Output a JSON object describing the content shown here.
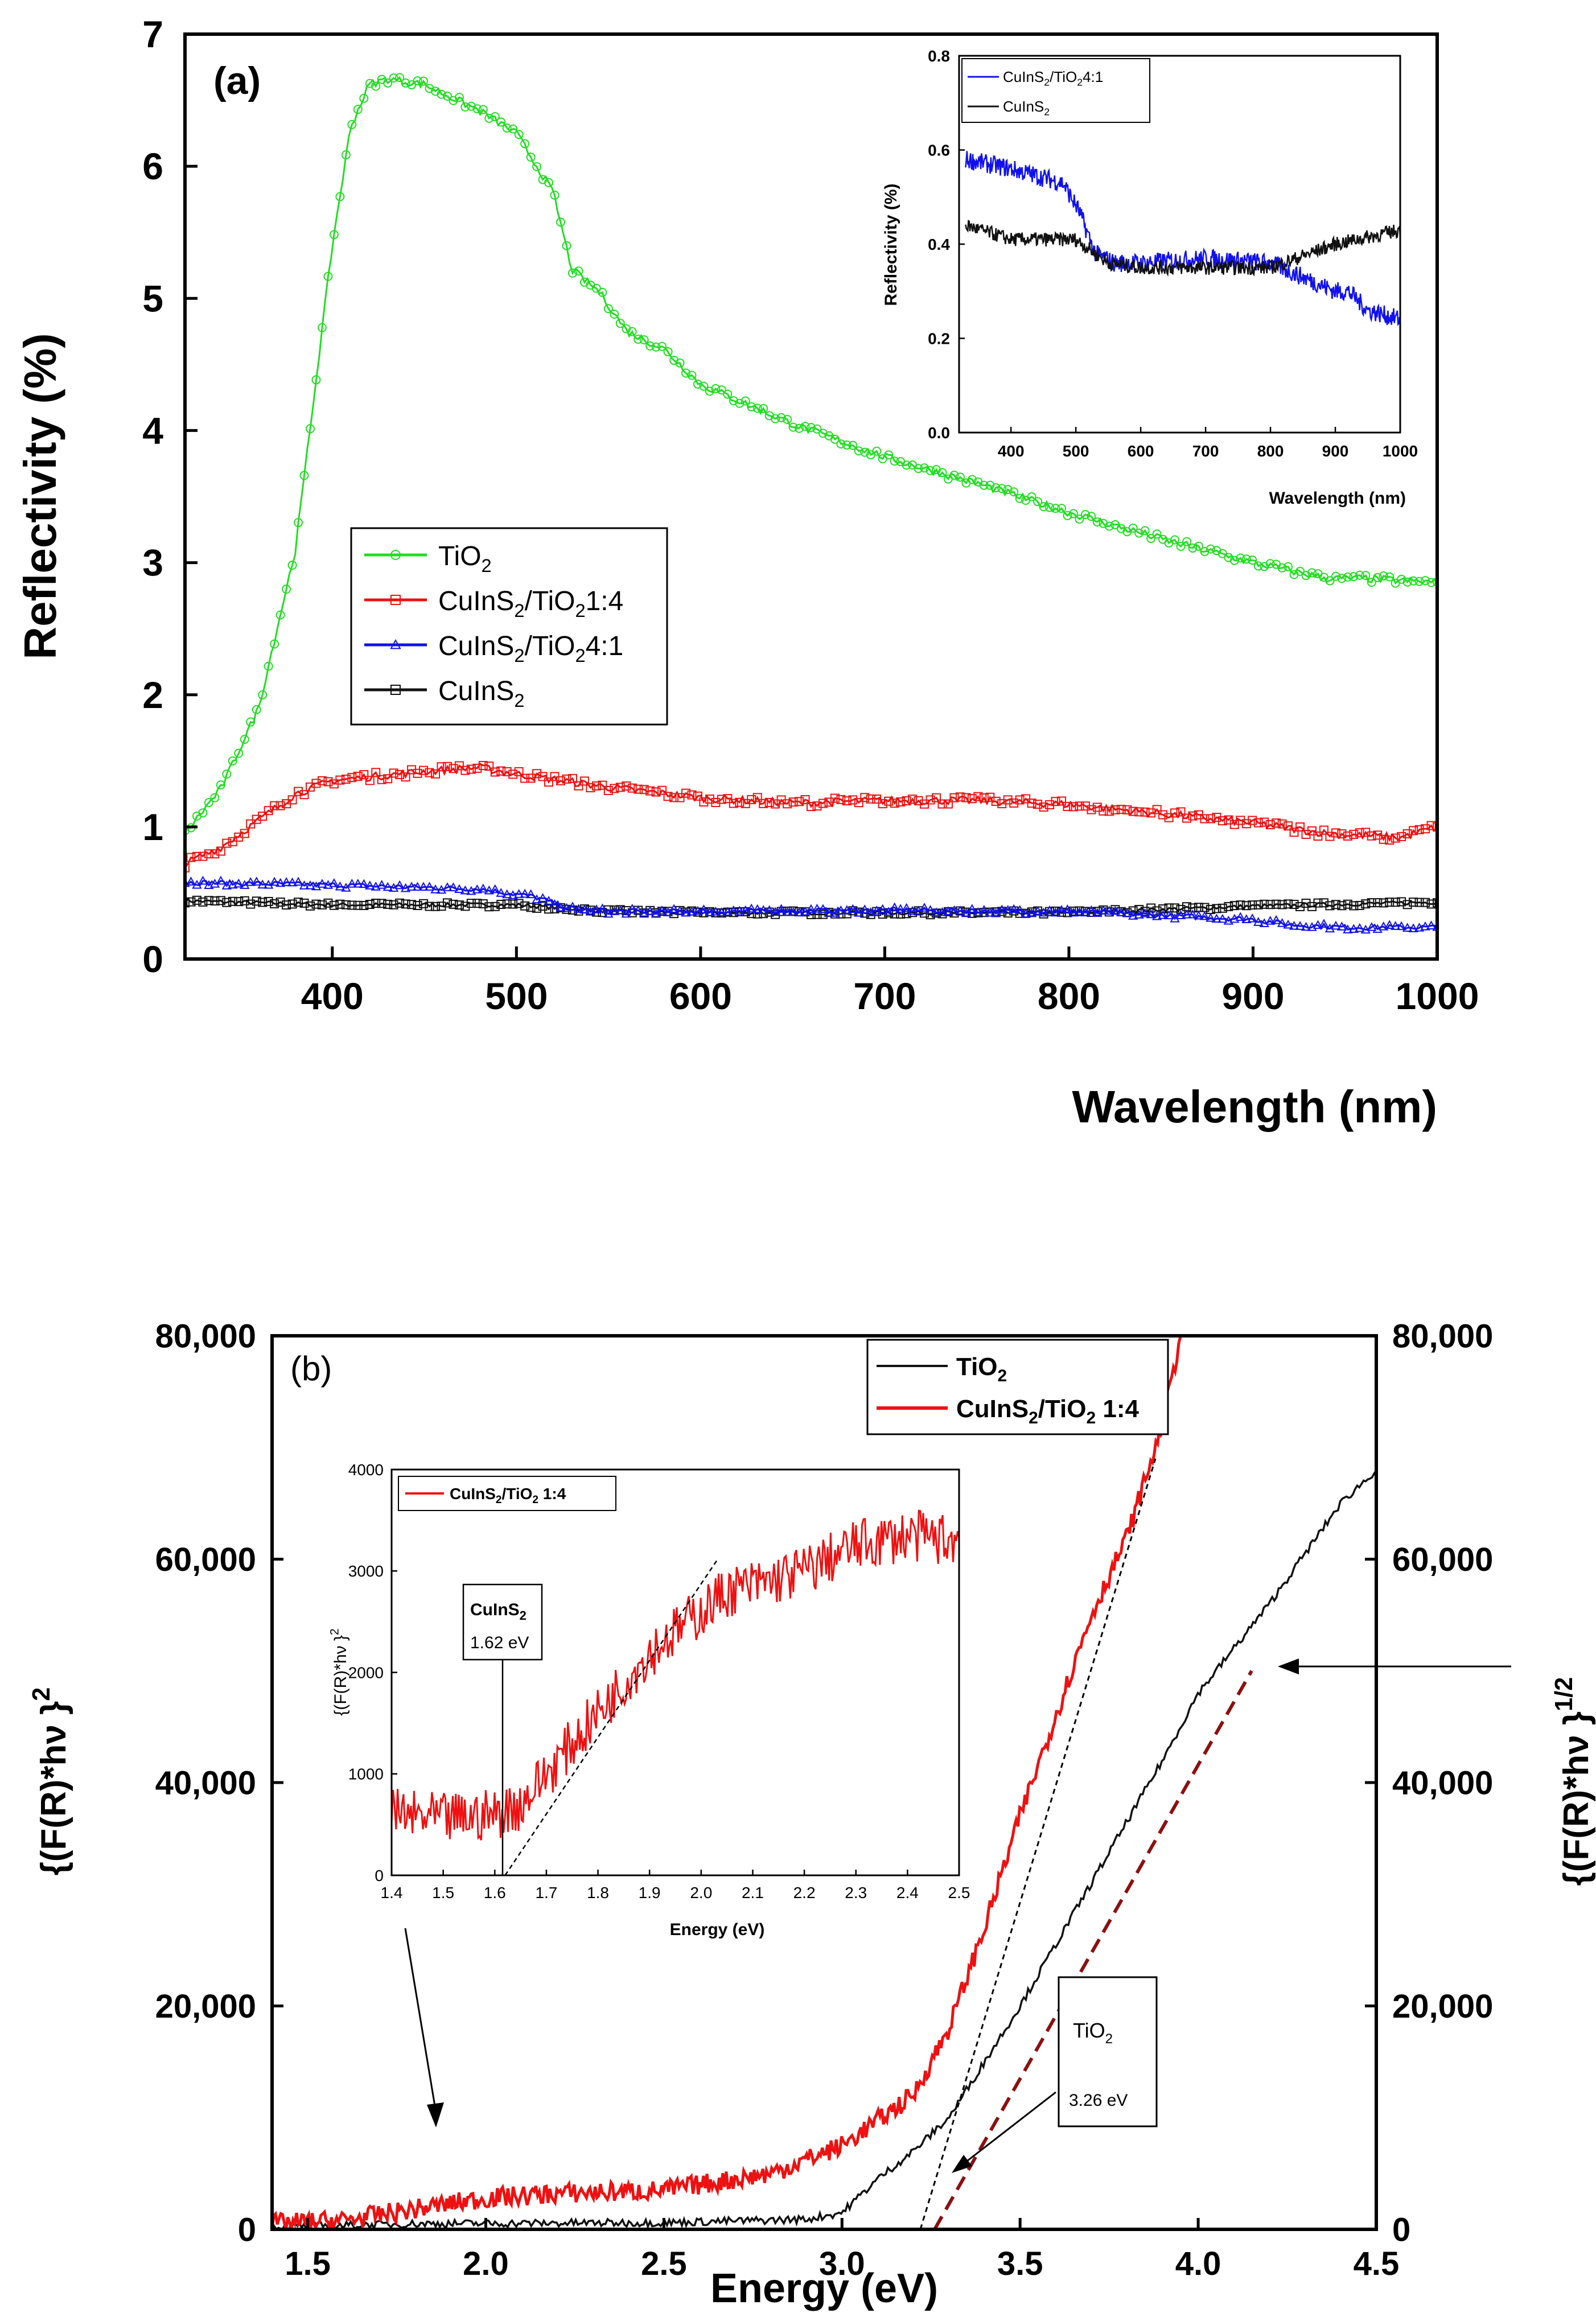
{
  "colors": {
    "tio2_green": "#22dd22",
    "red": "#ee1111",
    "blue": "#1111ee",
    "black": "#111111",
    "darkred_fit": "#8b1010"
  },
  "chart_data": [
    {
      "id": "a",
      "type": "line",
      "panel_label": "(a)",
      "xlabel": "Wavelength (nm)",
      "ylabel": "Reflectivity (%)",
      "xlim": [
        320,
        1000
      ],
      "ylim": [
        0,
        7
      ],
      "xticks": [
        "400",
        "500",
        "600",
        "700",
        "800",
        "900",
        "1000"
      ],
      "yticks": [
        "0",
        "1",
        "2",
        "3",
        "4",
        "5",
        "6",
        "7"
      ],
      "legend": [
        {
          "parts": [
            [
              "TiO",
              ""
            ],
            [
              "2",
              "sub"
            ]
          ],
          "color": "#22dd22",
          "marker": "circle"
        },
        {
          "parts": [
            [
              "CuInS",
              ""
            ],
            [
              "2",
              "sub"
            ],
            [
              "/TiO",
              ""
            ],
            [
              "2",
              "sub"
            ],
            [
              "1:4",
              ""
            ]
          ],
          "color": "#ee1111",
          "marker": "square"
        },
        {
          "parts": [
            [
              "CuInS",
              ""
            ],
            [
              "2",
              "sub"
            ],
            [
              "/TiO",
              ""
            ],
            [
              "2",
              "sub"
            ],
            [
              "4:1",
              ""
            ]
          ],
          "color": "#1111ee",
          "marker": "triangle"
        },
        {
          "parts": [
            [
              "CuInS",
              ""
            ],
            [
              "2",
              "sub"
            ]
          ],
          "color": "#111111",
          "marker": "square"
        }
      ],
      "series": [
        {
          "name": "TiO2",
          "color": "#22dd22",
          "marker": "circle",
          "noise": 0.03,
          "x": [
            320,
            340,
            360,
            380,
            400,
            410,
            420,
            430,
            450,
            480,
            500,
            520,
            530,
            545,
            560,
            580,
            600,
            650,
            700,
            750,
            800,
            850,
            900,
            940,
            960,
            1000
          ],
          "y": [
            0.95,
            1.3,
            1.9,
            3.1,
            5.4,
            6.3,
            6.62,
            6.66,
            6.62,
            6.42,
            6.25,
            5.8,
            5.22,
            5.05,
            4.75,
            4.62,
            4.35,
            4.05,
            3.8,
            3.6,
            3.38,
            3.18,
            3.0,
            2.88,
            2.88,
            2.85
          ]
        },
        {
          "name": "CuInS2/TiO2 1:4",
          "color": "#ee1111",
          "marker": "square",
          "noise": 0.03,
          "x": [
            320,
            340,
            360,
            380,
            400,
            450,
            480,
            500,
            550,
            600,
            650,
            700,
            750,
            800,
            850,
            900,
            940,
            980,
            1000
          ],
          "y": [
            0.72,
            0.85,
            1.05,
            1.25,
            1.35,
            1.42,
            1.45,
            1.4,
            1.3,
            1.22,
            1.18,
            1.2,
            1.2,
            1.17,
            1.1,
            1.03,
            0.95,
            0.92,
            1.0
          ]
        },
        {
          "name": "CuInS2/TiO2 4:1",
          "color": "#1111ee",
          "marker": "triangle",
          "noise": 0.02,
          "x": [
            320,
            400,
            480,
            510,
            530,
            550,
            600,
            700,
            800,
            850,
            900,
            920,
            950,
            1000
          ],
          "y": [
            0.58,
            0.56,
            0.53,
            0.47,
            0.38,
            0.36,
            0.36,
            0.37,
            0.36,
            0.33,
            0.3,
            0.26,
            0.24,
            0.24
          ]
        },
        {
          "name": "CuInS2",
          "color": "#111111",
          "marker": "square",
          "noise": 0.015,
          "x": [
            320,
            400,
            500,
            550,
            600,
            700,
            800,
            900,
            1000
          ],
          "y": [
            0.44,
            0.41,
            0.41,
            0.36,
            0.35,
            0.35,
            0.35,
            0.4,
            0.43
          ]
        }
      ],
      "inset": {
        "xlabel": "Wavelength (nm)",
        "ylabel": "Reflectivity (%)",
        "xlim": [
          320,
          1000
        ],
        "ylim": [
          0,
          0.8
        ],
        "xticks": [
          "400",
          "500",
          "600",
          "700",
          "800",
          "900",
          "1000"
        ],
        "yticks": [
          "0.0",
          "0.2",
          "0.4",
          "0.6",
          "0.8"
        ],
        "legend": [
          {
            "parts": [
              [
                "CuInS",
                ""
              ],
              [
                "2",
                "sub"
              ],
              [
                "/TiO",
                ""
              ],
              [
                "2",
                "sub"
              ],
              [
                "4:1",
                ""
              ]
            ],
            "color": "#1111ee"
          },
          {
            "parts": [
              [
                "CuInS",
                ""
              ],
              [
                "2",
                "sub"
              ]
            ],
            "color": "#111111"
          }
        ],
        "series": [
          {
            "name": "CuInS2/TiO2 4:1",
            "color": "#1111ee",
            "noise": 0.02,
            "x": [
              330,
              400,
              480,
              505,
              530,
              560,
              600,
              700,
              800,
              850,
              900,
              920,
              950,
              1000
            ],
            "y": [
              0.58,
              0.56,
              0.53,
              0.47,
              0.38,
              0.36,
              0.36,
              0.37,
              0.36,
              0.33,
              0.3,
              0.3,
              0.26,
              0.24
            ]
          },
          {
            "name": "CuInS2",
            "color": "#111111",
            "noise": 0.015,
            "x": [
              330,
              400,
              500,
              550,
              600,
              700,
              800,
              900,
              1000
            ],
            "y": [
              0.44,
              0.41,
              0.41,
              0.36,
              0.35,
              0.35,
              0.35,
              0.4,
              0.43
            ]
          }
        ]
      }
    },
    {
      "id": "b",
      "type": "line",
      "panel_label": "(b)",
      "xlabel": "Energy (eV)",
      "ylabel_left": "{(F(R)*hν }^2",
      "ylabel_right": "{(F(R)*hν }^1/2",
      "xlim": [
        1.4,
        4.5
      ],
      "ylim": [
        0,
        80000
      ],
      "xticks": [
        "1.5",
        "2.0",
        "2.5",
        "3.0",
        "3.5",
        "4.0",
        "4.5"
      ],
      "yticks": [
        "0",
        "20,000",
        "40,000",
        "60,000",
        "80,000"
      ],
      "legend": [
        {
          "parts": [
            [
              "TiO",
              ""
            ],
            [
              "2",
              "sub"
            ]
          ],
          "color": "#111111"
        },
        {
          "parts": [
            [
              "CuInS",
              ""
            ],
            [
              "2",
              "sub"
            ],
            [
              "/TiO",
              ""
            ],
            [
              "2",
              "sub"
            ],
            [
              " 1:4",
              ""
            ]
          ],
          "color": "#ee1111"
        }
      ],
      "series": [
        {
          "name": "TiO2",
          "color": "#111111",
          "noise": 350,
          "x": [
            1.4,
            1.8,
            2.5,
            2.9,
            3.0,
            3.05,
            3.1,
            3.2,
            3.3,
            3.5,
            3.7,
            3.9,
            4.0,
            4.2,
            4.4,
            4.5
          ],
          "y": [
            200,
            500,
            600,
            900,
            1500,
            3000,
            4500,
            7000,
            10000,
            20000,
            31000,
            42000,
            48000,
            56000,
            65000,
            68000
          ]
        },
        {
          "name": "CuInS2/TiO2 1:4",
          "color": "#ee1111",
          "noise": 900,
          "x": [
            1.4,
            1.6,
            1.8,
            2.0,
            2.2,
            2.5,
            2.8,
            3.0,
            3.2,
            3.3,
            3.4,
            3.5,
            3.6,
            3.7,
            3.8,
            3.9,
            3.95
          ],
          "y": [
            500,
            800,
            1800,
            2800,
            3200,
            3500,
            5000,
            7500,
            12000,
            18000,
            27000,
            37000,
            46000,
            55000,
            62000,
            72000,
            80000
          ]
        }
      ],
      "fits": [
        {
          "name": "CuInS2/TiO2 1:4 fit",
          "x": [
            3.22,
            3.88
          ],
          "y": [
            0,
            69000
          ],
          "style": "dotted"
        },
        {
          "name": "TiO2 fit",
          "x": [
            3.26,
            4.15
          ],
          "y": [
            0,
            50000
          ],
          "style": "dashed"
        }
      ],
      "annotations": {
        "tio2_box_title": "TiO2",
        "tio2_box_value": "3.26 eV",
        "cuins2_box_title": "CuInS2",
        "cuins2_box_value": "1.62 eV"
      },
      "inset": {
        "xlabel": "Energy (eV)",
        "ylabel": "{(F(R)*hν }^2",
        "xlim": [
          1.4,
          2.5
        ],
        "ylim": [
          0,
          4000
        ],
        "xticks": [
          "1.4",
          "1.5",
          "1.6",
          "1.7",
          "1.8",
          "1.9",
          "2.0",
          "2.1",
          "2.2",
          "2.3",
          "2.4",
          "2.5"
        ],
        "yticks": [
          "0",
          "1000",
          "2000",
          "3000",
          "4000"
        ],
        "legend": [
          {
            "parts": [
              [
                "CuInS",
                ""
              ],
              [
                "2",
                "sub"
              ],
              [
                "/TiO",
                ""
              ],
              [
                "2",
                "sub"
              ],
              [
                " 1:4",
                ""
              ]
            ],
            "color": "#ee1111"
          }
        ],
        "series": [
          {
            "name": "CuInS2/TiO2 1:4",
            "color": "#ee1111",
            "noise": 260,
            "x": [
              1.4,
              1.5,
              1.6,
              1.65,
              1.7,
              1.8,
              1.9,
              2.0,
              2.05,
              2.1,
              2.2,
              2.3,
              2.4,
              2.5
            ],
            "y": [
              600,
              550,
              600,
              700,
              1000,
              1600,
              2200,
              2600,
              2800,
              2850,
              3000,
              3250,
              3350,
              3300
            ]
          }
        ],
        "fit": {
          "x": [
            1.62,
            2.03
          ],
          "y": [
            0,
            3100
          ]
        }
      }
    }
  ]
}
